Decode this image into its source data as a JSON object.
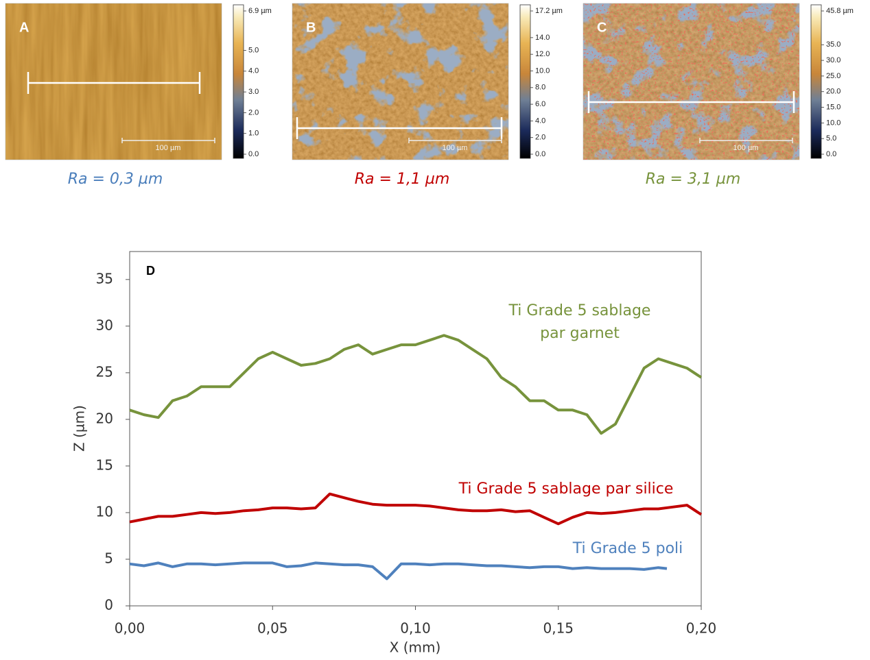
{
  "panels": [
    {
      "label": "A",
      "scale_bar": "100 µm",
      "caption": "Ra = 0,3 µm",
      "caption_color": "#4a7ebb",
      "colorbar_lim": [
        0,
        6.9
      ],
      "colorbar_ticks": [
        {
          "value": 6.9,
          "label": "6.9 µm"
        },
        {
          "value": 5,
          "label": "5.0"
        },
        {
          "value": 4,
          "label": "4.0"
        },
        {
          "value": 3,
          "label": "3.0"
        },
        {
          "value": 2,
          "label": "2.0"
        },
        {
          "value": 1,
          "label": "1.0"
        },
        {
          "value": 0,
          "label": "0.0"
        }
      ]
    },
    {
      "label": "B",
      "scale_bar": "100 µm",
      "caption": "Ra = 1,1 µm",
      "caption_color": "#c00000",
      "colorbar_lim": [
        0,
        17.2
      ],
      "colorbar_ticks": [
        {
          "value": 17.2,
          "label": "17.2 µm"
        },
        {
          "value": 14,
          "label": "14.0"
        },
        {
          "value": 12,
          "label": "12.0"
        },
        {
          "value": 10,
          "label": "10.0"
        },
        {
          "value": 8,
          "label": "8.0"
        },
        {
          "value": 6,
          "label": "6.0"
        },
        {
          "value": 4,
          "label": "4.0"
        },
        {
          "value": 2,
          "label": "2.0"
        },
        {
          "value": 0,
          "label": "0.0"
        }
      ]
    },
    {
      "label": "C",
      "scale_bar": "100 µm",
      "caption": "Ra = 3,1 µm",
      "caption_color": "#77933c",
      "colorbar_lim": [
        0,
        45.8
      ],
      "colorbar_ticks": [
        {
          "value": 45.8,
          "label": "45.8 µm"
        },
        {
          "value": 35,
          "label": "35.0"
        },
        {
          "value": 30,
          "label": "30.0"
        },
        {
          "value": 25,
          "label": "25.0"
        },
        {
          "value": 20,
          "label": "20.0"
        },
        {
          "value": 15,
          "label": "15.0"
        },
        {
          "value": 10,
          "label": "10.0"
        },
        {
          "value": 5,
          "label": "5.0"
        },
        {
          "value": 0,
          "label": "0.0"
        }
      ]
    }
  ],
  "chart_data": {
    "type": "line",
    "panel_label": "D",
    "x_label": "X (mm)",
    "y_label": "Z (µm)",
    "xlim": [
      0,
      0.2
    ],
    "ylim": [
      0,
      38
    ],
    "xticks": [
      {
        "value": 0,
        "label": "0,00"
      },
      {
        "value": 0.05,
        "label": "0,05"
      },
      {
        "value": 0.1,
        "label": "0,10"
      },
      {
        "value": 0.15,
        "label": "0,15"
      },
      {
        "value": 0.2,
        "label": "0,20"
      }
    ],
    "yticks": [
      0,
      5,
      10,
      15,
      20,
      25,
      30,
      35
    ],
    "series": [
      {
        "name": "Ti Grade 5 sablage par garnet",
        "color": "#77933c",
        "x": [
          0,
          0.005,
          0.01,
          0.015,
          0.02,
          0.025,
          0.03,
          0.035,
          0.04,
          0.045,
          0.05,
          0.055,
          0.06,
          0.065,
          0.07,
          0.075,
          0.08,
          0.085,
          0.09,
          0.095,
          0.1,
          0.105,
          0.11,
          0.115,
          0.12,
          0.125,
          0.13,
          0.135,
          0.14,
          0.145,
          0.15,
          0.155,
          0.16,
          0.165,
          0.17,
          0.175,
          0.18,
          0.185,
          0.19,
          0.195,
          0.2
        ],
        "values": [
          21,
          20.5,
          20.2,
          22,
          22.5,
          23.5,
          23.5,
          23.5,
          25,
          26.5,
          27.2,
          26.5,
          25.8,
          26,
          26.5,
          27.5,
          28,
          27,
          27.5,
          28,
          28,
          28.5,
          29,
          28.5,
          27.5,
          26.5,
          24.5,
          23.5,
          22,
          22,
          21,
          21,
          20.5,
          18.5,
          19.5,
          22.5,
          25.5,
          26.5,
          26,
          25.5,
          24.5
        ]
      },
      {
        "name": "Ti Grade 5 sablage par silice",
        "color": "#c00000",
        "x": [
          0,
          0.005,
          0.01,
          0.015,
          0.02,
          0.025,
          0.03,
          0.035,
          0.04,
          0.045,
          0.05,
          0.055,
          0.06,
          0.065,
          0.07,
          0.075,
          0.08,
          0.085,
          0.09,
          0.095,
          0.1,
          0.105,
          0.11,
          0.115,
          0.12,
          0.125,
          0.13,
          0.135,
          0.14,
          0.145,
          0.15,
          0.155,
          0.16,
          0.165,
          0.17,
          0.175,
          0.18,
          0.185,
          0.19,
          0.195,
          0.2
        ],
        "values": [
          9,
          9.3,
          9.6,
          9.6,
          9.8,
          10,
          9.9,
          10,
          10.2,
          10.3,
          10.5,
          10.5,
          10.4,
          10.5,
          12,
          11.6,
          11.2,
          10.9,
          10.8,
          10.8,
          10.8,
          10.7,
          10.5,
          10.3,
          10.2,
          10.2,
          10.3,
          10.1,
          10.2,
          9.5,
          8.8,
          9.5,
          10,
          9.9,
          10,
          10.2,
          10.4,
          10.4,
          10.6,
          10.8,
          9.8
        ]
      },
      {
        "name": "Ti Grade 5 poli",
        "color": "#4f81bd",
        "x": [
          0,
          0.005,
          0.01,
          0.015,
          0.02,
          0.025,
          0.03,
          0.035,
          0.04,
          0.045,
          0.05,
          0.055,
          0.06,
          0.065,
          0.07,
          0.075,
          0.08,
          0.085,
          0.09,
          0.095,
          0.1,
          0.105,
          0.11,
          0.115,
          0.12,
          0.125,
          0.13,
          0.135,
          0.14,
          0.145,
          0.15,
          0.155,
          0.16,
          0.165,
          0.17,
          0.175,
          0.18,
          0.185,
          0.188
        ],
        "values": [
          4.5,
          4.3,
          4.6,
          4.2,
          4.5,
          4.5,
          4.4,
          4.5,
          4.6,
          4.6,
          4.6,
          4.2,
          4.3,
          4.6,
          4.5,
          4.4,
          4.4,
          4.2,
          2.9,
          4.5,
          4.5,
          4.4,
          4.5,
          4.5,
          4.4,
          4.3,
          4.3,
          4.2,
          4.1,
          4.2,
          4.2,
          4.0,
          4.1,
          4.0,
          4.0,
          4.0,
          3.9,
          4.1,
          4.0
        ]
      }
    ]
  }
}
